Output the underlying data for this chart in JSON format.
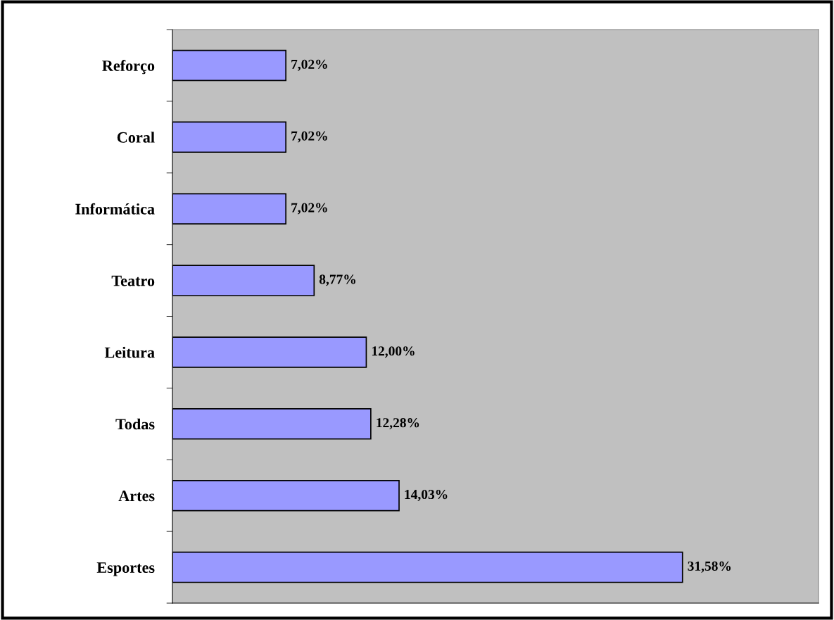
{
  "chart_data": {
    "type": "bar",
    "orientation": "horizontal",
    "categories": [
      "Reforço",
      "Coral",
      "Informática",
      "Teatro",
      "Leitura",
      "Todas",
      "Artes",
      "Esportes"
    ],
    "values": [
      7.02,
      7.02,
      7.02,
      8.77,
      12.0,
      12.28,
      14.03,
      31.58
    ],
    "value_labels": [
      "7,02%",
      "7,02%",
      "7,02%",
      "8,77%",
      "12,00%",
      "12,28%",
      "14,03%",
      "31,58%"
    ],
    "color": "#9999ff",
    "xlim": [
      0,
      40
    ],
    "tick_labels": "y",
    "grid": false,
    "legend": false
  }
}
